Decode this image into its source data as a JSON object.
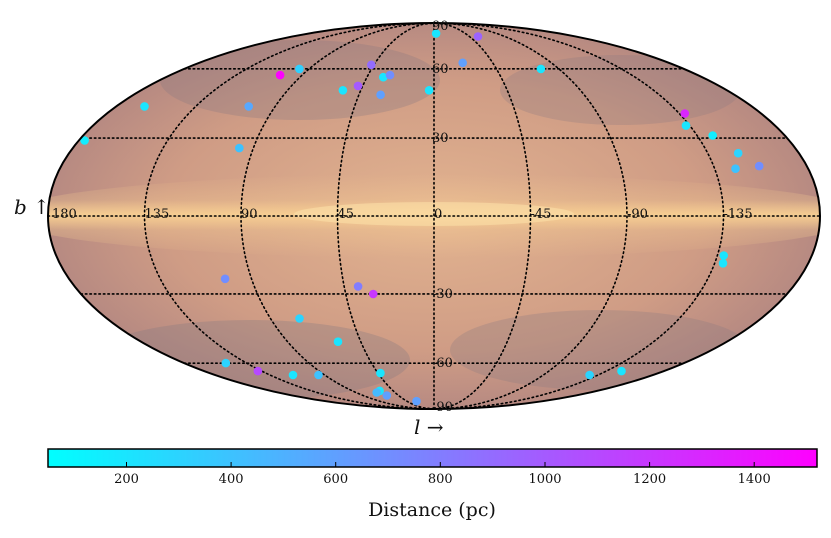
{
  "chart_data": {
    "type": "scatter",
    "projection": "mollweide",
    "coordinate_system": "galactic",
    "xlabel": "l →",
    "ylabel": "b ↑",
    "longitude_ticks": [
      {
        "value": 180,
        "label": "180"
      },
      {
        "value": 135,
        "label": "135"
      },
      {
        "value": 90,
        "label": "90"
      },
      {
        "value": 45,
        "label": "45"
      },
      {
        "value": 0,
        "label": "0"
      },
      {
        "value": -45,
        "label": "-45"
      },
      {
        "value": -90,
        "label": "-90"
      },
      {
        "value": -135,
        "label": "-135"
      }
    ],
    "latitude_ticks": [
      {
        "value": 90,
        "label": "90"
      },
      {
        "value": 60,
        "label": "60"
      },
      {
        "value": 30,
        "label": "30"
      },
      {
        "value": -30,
        "label": "-30"
      },
      {
        "value": -60,
        "label": "-60"
      },
      {
        "value": -90,
        "label": "-90"
      }
    ],
    "colorbar": {
      "label": "Distance (pc)",
      "range": [
        50,
        1520
      ],
      "ticks": [
        200,
        400,
        600,
        800,
        1000,
        1200,
        1400
      ],
      "colormap": "cool",
      "color_low": "#00ffff",
      "color_high": "#ff00ff"
    },
    "background": "dust emission all-sky map (warm tones)",
    "series": [
      {
        "name": "clouds",
        "columns": [
          "l_deg",
          "b_deg",
          "distance_pc"
        ],
        "points": [
          [
            -56,
            78,
            950
          ],
          [
            105,
            57,
            1500
          ],
          [
            177,
            29,
            150
          ],
          [
            164,
            43,
            200
          ],
          [
            97,
            60,
            320
          ],
          [
            105,
            43,
            550
          ],
          [
            97,
            26,
            400
          ],
          [
            48,
            52,
            1000
          ],
          [
            47,
            62,
            900
          ],
          [
            56,
            50,
            200
          ],
          [
            34,
            56,
            200
          ],
          [
            30,
            57,
            700
          ],
          [
            32,
            48,
            600
          ],
          [
            3,
            50,
            200
          ],
          [
            -3,
            80,
            200
          ],
          [
            -22,
            63,
            600
          ],
          [
            -77,
            60,
            200
          ],
          [
            -138,
            40,
            1300
          ],
          [
            -133,
            35,
            200
          ],
          [
            -143,
            31,
            150
          ],
          [
            -150,
            24,
            300
          ],
          [
            -157,
            19,
            700
          ],
          [
            -145,
            18,
            400
          ],
          [
            -138,
            -15,
            200
          ],
          [
            -139,
            -18,
            200
          ],
          [
            -147,
            -64,
            200
          ],
          [
            -128,
            -66,
            300
          ],
          [
            116,
            -66,
            200
          ],
          [
            150,
            -60,
            300
          ],
          [
            138,
            -64,
            1100
          ],
          [
            60,
            -75,
            200
          ],
          [
            66,
            -76,
            450
          ],
          [
            60,
            -78,
            600
          ],
          [
            29,
            -82,
            600
          ],
          [
            38,
            -27,
            800
          ],
          [
            31,
            -30,
            1200
          ],
          [
            74,
            -40,
            300
          ],
          [
            103,
            -24,
            700
          ],
          [
            59,
            -50,
            200
          ],
          [
            43,
            -65,
            200
          ],
          [
            95,
            -66,
            400
          ]
        ]
      }
    ]
  }
}
